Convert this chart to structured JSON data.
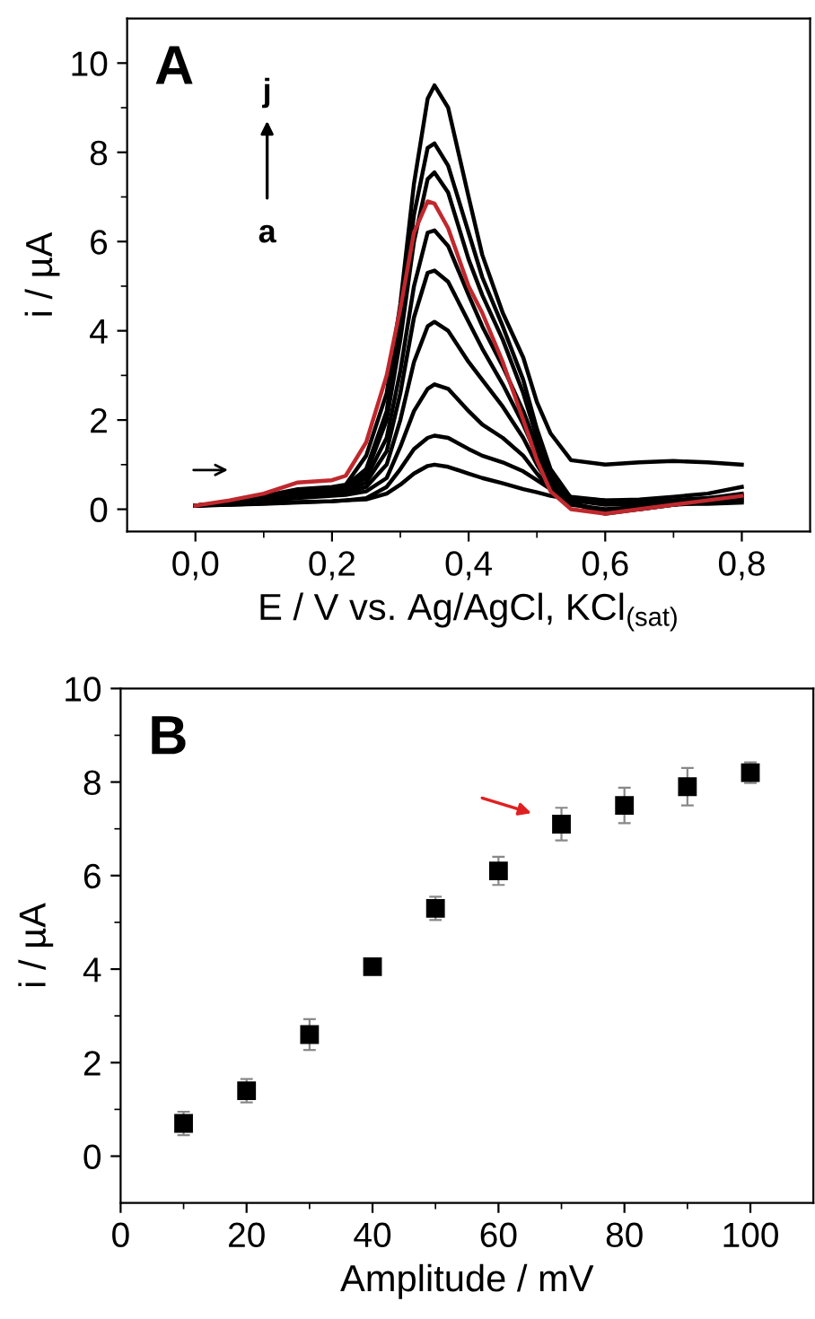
{
  "chart_data": [
    {
      "type": "line",
      "xlabel": "E / V vs. Ag/AgCl, KCl$_{(sat)}$",
      "ylabel": "i / µA",
      "annotations": [
        "A",
        "j",
        "a"
      ],
      "x": [
        0,
        0.05,
        0.1,
        0.15,
        0.2,
        0.22,
        0.25,
        0.28,
        0.3,
        0.32,
        0.34,
        0.35,
        0.37,
        0.4,
        0.42,
        0.45,
        0.48,
        0.5,
        0.52,
        0.55,
        0.6,
        0.65,
        0.7,
        0.75,
        0.8
      ],
      "series": [
        {
          "color": "#000000",
          "values": [
            0.08,
            0.1,
            0.12,
            0.15,
            0.18,
            0.2,
            0.22,
            0.35,
            0.55,
            0.8,
            0.97,
            1.0,
            0.95,
            0.8,
            0.7,
            0.58,
            0.45,
            0.38,
            0.3,
            0.22,
            0.15,
            0.12,
            0.12,
            0.12,
            0.15
          ]
        },
        {
          "color": "#000000",
          "values": [
            0.08,
            0.1,
            0.13,
            0.16,
            0.18,
            0.2,
            0.25,
            0.5,
            0.9,
            1.35,
            1.6,
            1.65,
            1.6,
            1.35,
            1.2,
            1.05,
            0.85,
            0.65,
            0.45,
            0.28,
            0.2,
            0.18,
            0.2,
            0.25,
            0.3
          ]
        },
        {
          "color": "#000000",
          "values": [
            0.08,
            0.12,
            0.18,
            0.25,
            0.3,
            0.32,
            0.4,
            0.7,
            1.4,
            2.2,
            2.7,
            2.8,
            2.7,
            2.2,
            1.9,
            1.6,
            1.2,
            0.8,
            0.45,
            0.2,
            0.1,
            0.12,
            0.15,
            0.2,
            0.25
          ]
        },
        {
          "color": "#000000",
          "values": [
            0.08,
            0.12,
            0.2,
            0.28,
            0.32,
            0.35,
            0.5,
            1.0,
            2.0,
            3.3,
            4.1,
            4.2,
            4.0,
            3.3,
            2.9,
            2.3,
            1.6,
            1.0,
            0.5,
            0.1,
            0.0,
            0.05,
            0.1,
            0.15,
            0.2
          ]
        },
        {
          "color": "#000000",
          "values": [
            0.08,
            0.14,
            0.22,
            0.3,
            0.35,
            0.4,
            0.6,
            1.3,
            2.6,
            4.3,
            5.3,
            5.35,
            5.1,
            4.2,
            3.6,
            2.8,
            1.9,
            1.2,
            0.6,
            0.15,
            -0.05,
            0.0,
            0.1,
            0.2,
            0.3
          ]
        },
        {
          "color": "#000000",
          "values": [
            0.08,
            0.15,
            0.25,
            0.35,
            0.4,
            0.45,
            0.7,
            1.6,
            3.1,
            5.0,
            6.2,
            6.25,
            5.9,
            4.8,
            4.1,
            3.2,
            2.2,
            1.4,
            0.7,
            0.15,
            -0.1,
            0.0,
            0.1,
            0.2,
            0.3
          ]
        },
        {
          "color": "#c0282d",
          "values": [
            0.08,
            0.2,
            0.35,
            0.6,
            0.65,
            0.75,
            1.5,
            3.0,
            4.5,
            6.2,
            6.9,
            6.85,
            6.3,
            5.0,
            4.4,
            3.3,
            2.0,
            1.1,
            0.4,
            0.0,
            -0.1,
            0.0,
            0.1,
            0.2,
            0.3
          ]
        },
        {
          "color": "#000000",
          "values": [
            0.08,
            0.15,
            0.28,
            0.4,
            0.45,
            0.5,
            0.8,
            2.0,
            3.8,
            6.0,
            7.4,
            7.55,
            7.1,
            5.6,
            4.8,
            3.8,
            2.6,
            1.6,
            0.8,
            0.2,
            0.15,
            0.18,
            0.2,
            0.25,
            0.35
          ]
        },
        {
          "color": "#000000",
          "values": [
            0.08,
            0.15,
            0.3,
            0.42,
            0.48,
            0.52,
            0.9,
            2.2,
            4.2,
            6.6,
            8.1,
            8.2,
            7.7,
            6.2,
            5.2,
            4.1,
            2.9,
            1.8,
            0.9,
            0.25,
            0.2,
            0.22,
            0.28,
            0.35,
            0.5
          ]
        },
        {
          "color": "#000000",
          "values": [
            0.08,
            0.15,
            0.3,
            0.45,
            0.5,
            0.55,
            1.2,
            2.6,
            4.6,
            7.3,
            9.2,
            9.5,
            9.0,
            7.0,
            5.7,
            4.4,
            3.4,
            2.4,
            1.7,
            1.1,
            1.0,
            1.05,
            1.08,
            1.05,
            1.0
          ]
        }
      ],
      "xlim": [
        -0.1,
        0.9
      ],
      "ylim": [
        -0.5,
        11
      ],
      "xticks": [
        {
          "value": 0,
          "label": "0,0"
        },
        {
          "value": 0.1,
          "label": null
        },
        {
          "value": 0.2,
          "label": "0,2"
        },
        {
          "value": 0.3,
          "label": null
        },
        {
          "value": 0.4,
          "label": "0,4"
        },
        {
          "value": 0.5,
          "label": null
        },
        {
          "value": 0.6,
          "label": "0,6"
        },
        {
          "value": 0.7,
          "label": null
        },
        {
          "value": 0.8,
          "label": "0,8"
        }
      ],
      "yticks": [
        0,
        {
          "value": 1,
          "label": null
        },
        2,
        {
          "value": 3,
          "label": null
        },
        4,
        {
          "value": 5,
          "label": null
        },
        6,
        {
          "value": 7,
          "label": null
        },
        8,
        {
          "value": 9,
          "label": null
        },
        10
      ],
      "grid": false,
      "legend": false,
      "marker": "none",
      "line_style": "solid"
    },
    {
      "type": "scatter",
      "xlabel": "Amplitude / mV",
      "ylabel": "i / µA",
      "annotations": [
        "B"
      ],
      "x": [
        10,
        20,
        30,
        40,
        50,
        60,
        70,
        80,
        90,
        100
      ],
      "values": [
        0.7,
        1.4,
        2.6,
        4.05,
        5.3,
        6.1,
        7.1,
        7.5,
        7.9,
        8.2
      ],
      "errors": [
        0.25,
        0.25,
        0.33,
        0.15,
        0.25,
        0.3,
        0.35,
        0.38,
        0.4,
        0.22
      ],
      "color": "#000000",
      "xlim": [
        0,
        110
      ],
      "ylim": [
        -1,
        10
      ],
      "xticks": [
        0,
        {
          "value": 10,
          "label": null
        },
        20,
        {
          "value": 30,
          "label": null
        },
        40,
        {
          "value": 50,
          "label": null
        },
        60,
        {
          "value": 70,
          "label": null
        },
        80,
        {
          "value": 90,
          "label": null
        },
        100
      ],
      "yticks": [
        0,
        {
          "value": 1,
          "label": null
        },
        2,
        {
          "value": 3,
          "label": null
        },
        4,
        {
          "value": 5,
          "label": null
        },
        6,
        {
          "value": 7,
          "label": null
        },
        8,
        {
          "value": 9,
          "label": null
        },
        10
      ],
      "grid": false,
      "legend": false,
      "marker": "square"
    }
  ]
}
